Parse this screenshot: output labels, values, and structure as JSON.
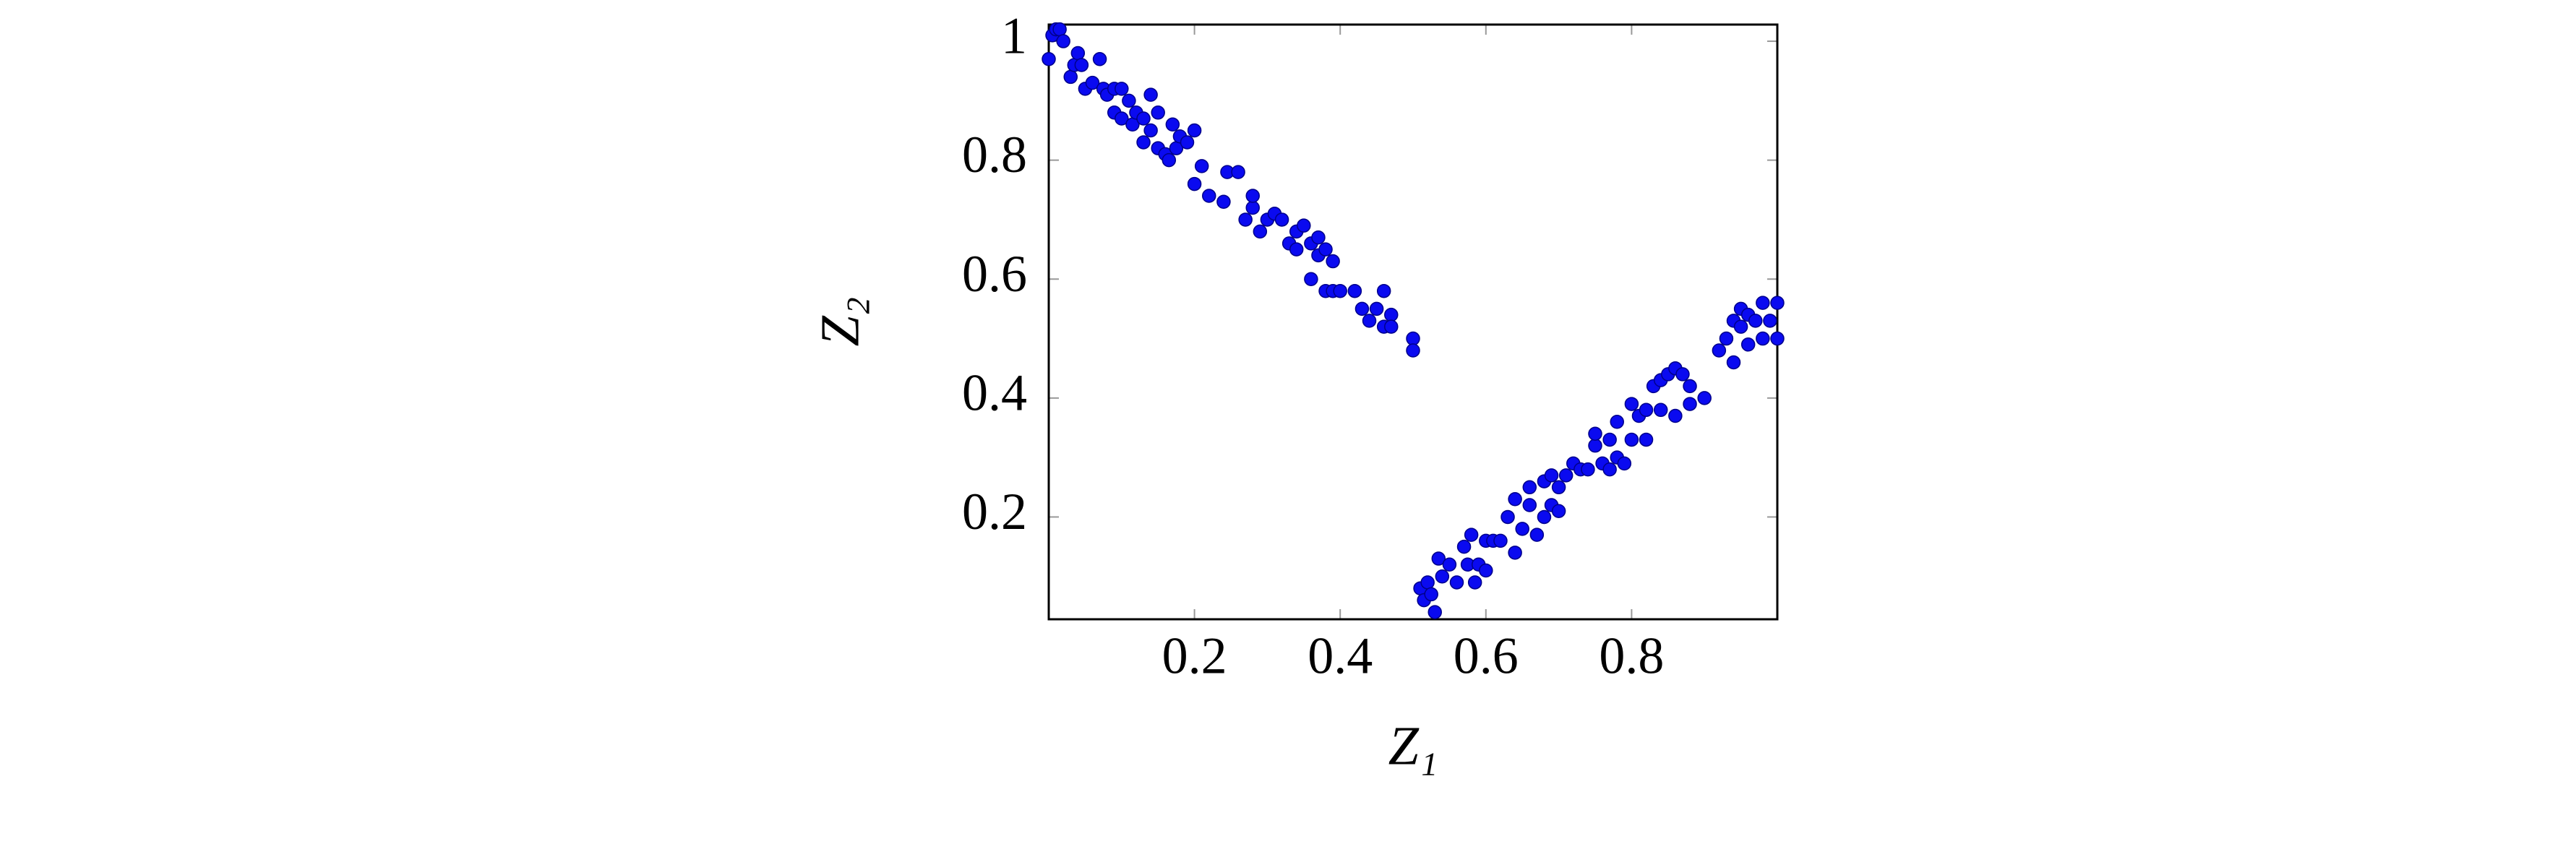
{
  "chart_data": {
    "type": "scatter",
    "x_label": "Z₁",
    "y_label": "Z₂",
    "xlim": [
      0,
      1
    ],
    "ylim": [
      0.028,
      1.028
    ],
    "xticks": [
      0.2,
      0.4,
      0.6,
      0.8
    ],
    "yticks": [
      0.2,
      0.4,
      0.6,
      0.8,
      1
    ],
    "color": "#0a0af0",
    "x": [
      0.0,
      0.005,
      0.01,
      0.015,
      0.02,
      0.03,
      0.035,
      0.04,
      0.045,
      0.05,
      0.06,
      0.07,
      0.075,
      0.08,
      0.09,
      0.09,
      0.1,
      0.1,
      0.11,
      0.115,
      0.12,
      0.13,
      0.13,
      0.14,
      0.14,
      0.15,
      0.15,
      0.16,
      0.165,
      0.17,
      0.175,
      0.18,
      0.19,
      0.2,
      0.2,
      0.21,
      0.22,
      0.24,
      0.245,
      0.26,
      0.27,
      0.28,
      0.28,
      0.29,
      0.3,
      0.31,
      0.32,
      0.33,
      0.34,
      0.34,
      0.35,
      0.36,
      0.36,
      0.37,
      0.37,
      0.38,
      0.38,
      0.39,
      0.39,
      0.4,
      0.42,
      0.43,
      0.44,
      0.45,
      0.46,
      0.46,
      0.47,
      0.47,
      0.5,
      0.5,
      0.51,
      0.515,
      0.52,
      0.525,
      0.53,
      0.535,
      0.54,
      0.55,
      0.56,
      0.57,
      0.575,
      0.58,
      0.585,
      0.59,
      0.6,
      0.6,
      0.61,
      0.62,
      0.63,
      0.64,
      0.64,
      0.65,
      0.66,
      0.66,
      0.67,
      0.68,
      0.68,
      0.69,
      0.69,
      0.7,
      0.7,
      0.71,
      0.72,
      0.73,
      0.74,
      0.75,
      0.75,
      0.76,
      0.77,
      0.77,
      0.78,
      0.78,
      0.79,
      0.8,
      0.8,
      0.81,
      0.82,
      0.82,
      0.83,
      0.84,
      0.84,
      0.85,
      0.86,
      0.86,
      0.87,
      0.88,
      0.88,
      0.9,
      0.92,
      0.93,
      0.94,
      0.94,
      0.95,
      0.95,
      0.96,
      0.96,
      0.97,
      0.98,
      0.98,
      0.99,
      1.0,
      1.0
    ],
    "values": [
      0.97,
      1.01,
      1.02,
      1.02,
      1.0,
      0.94,
      0.96,
      0.98,
      0.96,
      0.92,
      0.93,
      0.97,
      0.92,
      0.91,
      0.92,
      0.88,
      0.87,
      0.92,
      0.9,
      0.86,
      0.88,
      0.87,
      0.83,
      0.91,
      0.85,
      0.88,
      0.82,
      0.81,
      0.8,
      0.86,
      0.82,
      0.84,
      0.83,
      0.85,
      0.76,
      0.79,
      0.74,
      0.73,
      0.78,
      0.78,
      0.7,
      0.72,
      0.74,
      0.68,
      0.7,
      0.71,
      0.7,
      0.66,
      0.68,
      0.65,
      0.69,
      0.66,
      0.6,
      0.67,
      0.64,
      0.65,
      0.58,
      0.63,
      0.58,
      0.58,
      0.58,
      0.55,
      0.53,
      0.55,
      0.52,
      0.58,
      0.54,
      0.52,
      0.5,
      0.48,
      0.08,
      0.06,
      0.09,
      0.07,
      0.04,
      0.13,
      0.1,
      0.12,
      0.09,
      0.15,
      0.12,
      0.17,
      0.09,
      0.12,
      0.16,
      0.11,
      0.16,
      0.16,
      0.2,
      0.14,
      0.23,
      0.18,
      0.22,
      0.25,
      0.17,
      0.2,
      0.26,
      0.27,
      0.22,
      0.25,
      0.21,
      0.27,
      0.29,
      0.28,
      0.28,
      0.32,
      0.34,
      0.29,
      0.28,
      0.33,
      0.36,
      0.3,
      0.29,
      0.39,
      0.33,
      0.37,
      0.33,
      0.38,
      0.42,
      0.43,
      0.38,
      0.44,
      0.45,
      0.37,
      0.44,
      0.42,
      0.39,
      0.4,
      0.48,
      0.5,
      0.46,
      0.53,
      0.52,
      0.55,
      0.49,
      0.54,
      0.53,
      0.56,
      0.5,
      0.53,
      0.56,
      0.5
    ]
  }
}
